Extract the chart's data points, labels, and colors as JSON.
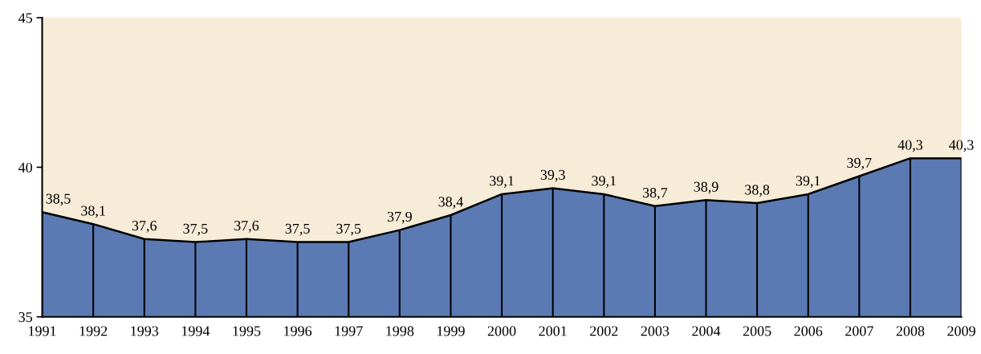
{
  "chart_data": {
    "type": "area",
    "x": [
      1991,
      1992,
      1993,
      1994,
      1995,
      1996,
      1997,
      1998,
      1999,
      2000,
      2001,
      2002,
      2003,
      2004,
      2005,
      2006,
      2007,
      2008,
      2009
    ],
    "series": [
      {
        "color": "#5b7ab3",
        "values": [
          38.5,
          38.1,
          37.6,
          37.5,
          37.6,
          37.5,
          37.5,
          37.9,
          38.4,
          39.1,
          39.3,
          39.1,
          38.7,
          38.9,
          38.8,
          39.1,
          39.7,
          40.3,
          40.3
        ],
        "value_labels": [
          "38,5",
          "38,1",
          "37,6",
          "37,5",
          "37,6",
          "37,5",
          "37,5",
          "37,9",
          "38,4",
          "39,1",
          "39,3",
          "39,1",
          "38,7",
          "38,9",
          "38,8",
          "39,1",
          "39,7",
          "40,3",
          "40,3"
        ]
      }
    ],
    "xlim": [
      1991,
      2009
    ],
    "xticks": [
      1991,
      1992,
      1993,
      1994,
      1995,
      1996,
      1997,
      1998,
      1999,
      2000,
      2001,
      2002,
      2003,
      2004,
      2005,
      2006,
      2007,
      2008,
      2009
    ],
    "ylim": [
      35,
      45
    ],
    "yticks": [
      35,
      40,
      45
    ],
    "grid": false,
    "legend": false
  }
}
